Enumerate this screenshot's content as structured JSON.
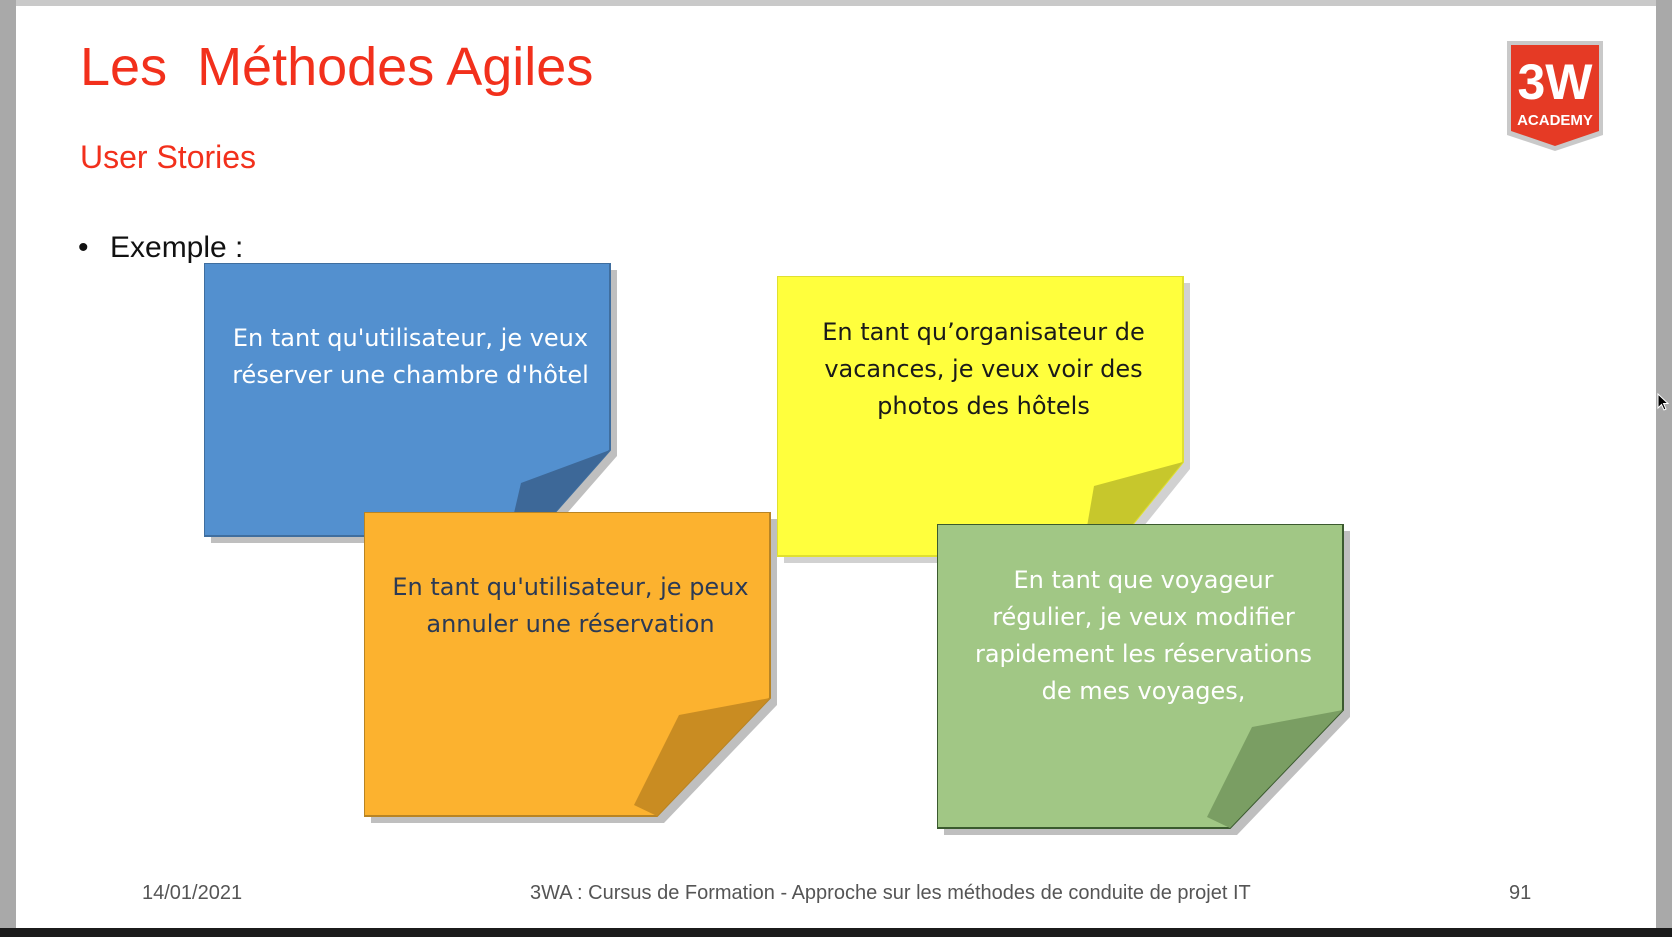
{
  "slide": {
    "title": "Les  Méthodes Agiles",
    "subtitle": "User Stories",
    "bullet": "Exemple :",
    "logo": {
      "line1": "3W",
      "line2": "ACADEMY",
      "color": "#e53a25"
    },
    "notes": [
      {
        "lines": [
          "En tant qu'utilisateur, je veux",
          "réserver une chambre d'hôtel"
        ],
        "fill": "#5390cf",
        "fold": "#3d6898",
        "text_color": "#ffffff"
      },
      {
        "lines": [
          "En tant qu’organisateur de",
          "vacances, je veux voir des",
          "photos des hôtels"
        ],
        "fill": "#ffff3d",
        "fold": "#c7c72c",
        "text_color": "#1a1a1a"
      },
      {
        "lines": [
          "En tant qu'utilisateur, je peux",
          "annuler une réservation"
        ],
        "fill": "#fcb22f",
        "fold": "#c98c22",
        "text_color": "#2b3a55"
      },
      {
        "lines": [
          "En tant que voyageur",
          "régulier, je veux modifier",
          "rapidement les réservations",
          "de mes voyages,"
        ],
        "fill": "#a1c785",
        "fold": "#7a9e63",
        "text_color": "#ffffff"
      }
    ],
    "footer": {
      "date": "14/01/2021",
      "center": "3WA : Cursus de Formation - Approche sur les méthodes de conduite de projet IT",
      "page": "91"
    }
  }
}
